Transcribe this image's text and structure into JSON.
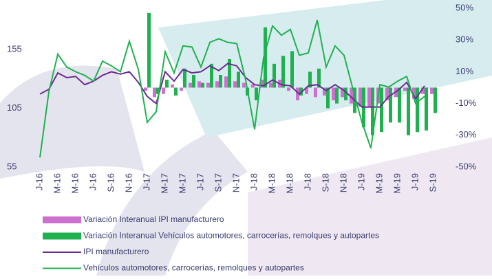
{
  "chart_data": {
    "type": "bar",
    "categories": [
      "J-16",
      null,
      "M-16",
      null,
      "M-16",
      null,
      "J-16",
      null,
      "S-16",
      null,
      "N-16",
      null,
      "J-17",
      null,
      "M-17",
      null,
      "M-17",
      null,
      "J-17",
      null,
      "S-17",
      null,
      "N-17",
      null,
      "J-18",
      null,
      "M-18",
      null,
      "M-18",
      null,
      "J-18",
      null,
      "S-18",
      null,
      "N-18",
      null,
      "J-19",
      null,
      "M-19",
      null,
      "M-19",
      null,
      "J-19",
      null,
      "S-19"
    ],
    "ylim": [
      55,
      190
    ],
    "yticks": [
      55,
      105,
      155
    ],
    "y2lim": [
      -50,
      50
    ],
    "y2ticks": [
      {
        "value": 50,
        "label": "50%"
      },
      {
        "value": 30,
        "label": "30%"
      },
      {
        "value": 10,
        "label": "10%"
      },
      {
        "value": -10,
        "label": "-10%"
      },
      {
        "value": -30,
        "label": "-30%"
      },
      {
        "value": -50,
        "label": "-50%"
      }
    ],
    "series": [
      {
        "name": "Variación Interanual IPI manufacturero",
        "type": "bar",
        "axis": "y2",
        "color": "#cc6fcf",
        "values": [
          null,
          null,
          null,
          null,
          null,
          null,
          null,
          null,
          null,
          null,
          null,
          null,
          -2,
          -6,
          -4,
          2,
          -2,
          3,
          4,
          3,
          4,
          7,
          4,
          3,
          2,
          5,
          3,
          5,
          -2,
          -8,
          -4,
          -6,
          -5,
          -8,
          -6,
          -10,
          -12,
          -12,
          -10,
          -8,
          -6,
          -2,
          -7,
          -4,
          -4
        ]
      },
      {
        "name": "Variación Interanual Vehículos automotores, carrocerías, remolques y autopartes",
        "type": "bar",
        "axis": "y2",
        "color": "#1fb14f",
        "values": [
          null,
          null,
          null,
          null,
          null,
          null,
          null,
          null,
          null,
          null,
          null,
          null,
          47,
          -4,
          5,
          -5,
          12,
          8,
          3,
          15,
          8,
          18,
          10,
          -5,
          -8,
          38,
          15,
          20,
          23,
          -5,
          10,
          12,
          -13,
          -10,
          -8,
          -16,
          -25,
          -30,
          -28,
          -22,
          -22,
          -30,
          -28,
          -27,
          -16
        ]
      },
      {
        "name": "IPI manufacturero",
        "type": "line",
        "color": "#6a2c91",
        "values": [
          117,
          121,
          135,
          131,
          132,
          125,
          128,
          133,
          136,
          134,
          136,
          127,
          115,
          109,
          136,
          128,
          138,
          135,
          136,
          141,
          137,
          143,
          141,
          131,
          125,
          124,
          129,
          125,
          124,
          117,
          124,
          125,
          120,
          125,
          120,
          113,
          106,
          106,
          106,
          115,
          120,
          127,
          113,
          124,
          null
        ]
      },
      {
        "name": "Vehículos automotores, carrocerías, remolques y autopartes",
        "type": "line",
        "color": "#1fb14f",
        "values": [
          63,
          119,
          151,
          140,
          136,
          133,
          128,
          145,
          141,
          136,
          162,
          138,
          93,
          102,
          153,
          135,
          158,
          157,
          140,
          161,
          164,
          161,
          160,
          129,
          87,
          148,
          175,
          167,
          172,
          150,
          152,
          180,
          140,
          158,
          150,
          121,
          93,
          71,
          125,
          123,
          128,
          132,
          109,
          115,
          null
        ]
      }
    ]
  }
}
